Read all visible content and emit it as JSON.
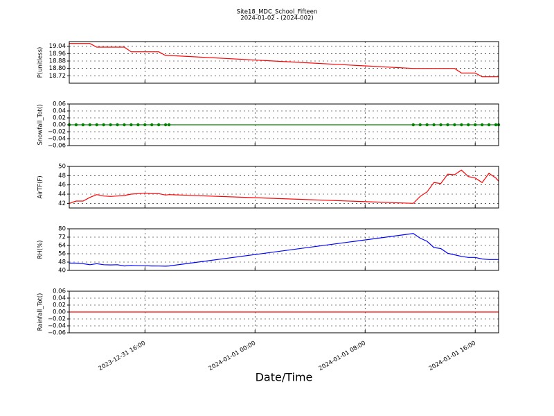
{
  "chart_data": [
    {
      "type": "line",
      "title": "Site18_MDC_School_Fifteen",
      "subtitle": "2024-01-02 - (2024-002)",
      "ylabel": "P(unitless)",
      "x": [
        "2023-12-31 10:30",
        "2023-12-31 11:00",
        "2023-12-31 11:30",
        "2023-12-31 12:00",
        "2023-12-31 12:30",
        "2023-12-31 13:00",
        "2023-12-31 13:30",
        "2023-12-31 14:00",
        "2023-12-31 14:30",
        "2023-12-31 15:00",
        "2023-12-31 15:30",
        "2023-12-31 16:00",
        "2023-12-31 16:30",
        "2023-12-31 17:00",
        "2023-12-31 17:30",
        "2023-12-31 17:45",
        "2024-01-01 11:30",
        "2024-01-01 12:00",
        "2024-01-01 12:30",
        "2024-01-01 13:00",
        "2024-01-01 13:30",
        "2024-01-01 14:00",
        "2024-01-01 14:30",
        "2024-01-01 15:00",
        "2024-01-01 15:30",
        "2024-01-01 16:00",
        "2024-01-01 16:30",
        "2024-01-01 17:00",
        "2024-01-01 17:30",
        "2024-01-01 17:42"
      ],
      "values": [
        19.07,
        19.07,
        19.07,
        19.07,
        19.03,
        19.03,
        19.03,
        19.03,
        19.03,
        18.98,
        18.98,
        18.98,
        18.98,
        18.98,
        18.94,
        18.94,
        18.8,
        18.8,
        18.8,
        18.8,
        18.8,
        18.8,
        18.8,
        18.75,
        18.75,
        18.75,
        18.71,
        18.71,
        18.71,
        18.71
      ],
      "color": "#ff0000",
      "marker": false,
      "xlim": [
        "2023-12-31 10:30",
        "2024-01-01 17:42"
      ],
      "xticks": [
        "2023-12-31 16:00",
        "2024-01-01 00:00",
        "2024-01-01 08:00",
        "2024-01-01 16:00"
      ],
      "ylim": [
        18.64,
        19.09
      ],
      "yticks": [
        {
          "value": 18.72,
          "label": "18.72"
        },
        {
          "value": 18.8,
          "label": "18.80"
        },
        {
          "value": 18.88,
          "label": "18.88"
        },
        {
          "value": 18.96,
          "label": "18.96"
        },
        {
          "value": 19.04,
          "label": "19.04"
        }
      ],
      "grid": true
    },
    {
      "type": "line",
      "ylabel": "Snowfall_Tot()",
      "x": [
        "2023-12-31 10:30",
        "2023-12-31 11:00",
        "2023-12-31 11:30",
        "2023-12-31 12:00",
        "2023-12-31 12:30",
        "2023-12-31 13:00",
        "2023-12-31 13:30",
        "2023-12-31 14:00",
        "2023-12-31 14:30",
        "2023-12-31 15:00",
        "2023-12-31 15:30",
        "2023-12-31 16:00",
        "2023-12-31 16:30",
        "2023-12-31 17:00",
        "2023-12-31 17:30",
        "2023-12-31 17:45",
        "2024-01-01 11:30",
        "2024-01-01 12:00",
        "2024-01-01 12:30",
        "2024-01-01 13:00",
        "2024-01-01 13:30",
        "2024-01-01 14:00",
        "2024-01-01 14:30",
        "2024-01-01 15:00",
        "2024-01-01 15:30",
        "2024-01-01 16:00",
        "2024-01-01 16:30",
        "2024-01-01 17:00",
        "2024-01-01 17:30",
        "2024-01-01 17:42"
      ],
      "values": [
        0,
        0,
        0,
        0,
        0,
        0,
        0,
        0,
        0,
        0,
        0,
        0,
        0,
        0,
        0,
        0,
        0,
        0,
        0,
        0,
        0,
        0,
        0,
        0,
        0,
        0,
        0,
        0,
        0,
        0
      ],
      "color": "#008000",
      "marker": true,
      "xlim": [
        "2023-12-31 10:30",
        "2024-01-01 17:42"
      ],
      "xticks": [
        "2023-12-31 16:00",
        "2024-01-01 00:00",
        "2024-01-01 08:00",
        "2024-01-01 16:00"
      ],
      "ylim": [
        -0.06,
        0.06
      ],
      "yticks": [
        {
          "value": -0.06,
          "label": "−0.06"
        },
        {
          "value": -0.04,
          "label": "−0.04"
        },
        {
          "value": -0.02,
          "label": "−0.02"
        },
        {
          "value": 0,
          "label": "0.00"
        },
        0.02,
        0.04,
        0.06
      ],
      "grid": true
    },
    {
      "type": "line",
      "ylabel": "AirTF(F)",
      "x": [
        "2023-12-31 10:30",
        "2023-12-31 11:00",
        "2023-12-31 11:30",
        "2023-12-31 12:00",
        "2023-12-31 12:30",
        "2023-12-31 13:00",
        "2023-12-31 13:30",
        "2023-12-31 14:00",
        "2023-12-31 14:30",
        "2023-12-31 15:00",
        "2023-12-31 15:30",
        "2023-12-31 16:00",
        "2023-12-31 16:30",
        "2023-12-31 17:00",
        "2023-12-31 17:30",
        "2023-12-31 17:45",
        "2024-01-01 11:30",
        "2024-01-01 12:00",
        "2024-01-01 12:30",
        "2024-01-01 13:00",
        "2024-01-01 13:30",
        "2024-01-01 14:00",
        "2024-01-01 14:30",
        "2024-01-01 15:00",
        "2024-01-01 15:30",
        "2024-01-01 16:00",
        "2024-01-01 16:30",
        "2024-01-01 17:00",
        "2024-01-01 17:30",
        "2024-01-01 17:42"
      ],
      "values": [
        42,
        42.5,
        42.5,
        43.3,
        43.9,
        43.6,
        43.5,
        43.6,
        43.7,
        44,
        44.1,
        44.2,
        44.1,
        44.1,
        43.8,
        43.9,
        42,
        43.5,
        44.5,
        46.5,
        46.3,
        48.3,
        48.2,
        49.2,
        47.8,
        47.5,
        46.5,
        48.5,
        47.5,
        46.8
      ],
      "color": "#ff0000",
      "marker": false,
      "xlim": [
        "2023-12-31 10:30",
        "2024-01-01 17:42"
      ],
      "xticks": [
        "2023-12-31 16:00",
        "2024-01-01 00:00",
        "2024-01-01 08:00",
        "2024-01-01 16:00"
      ],
      "ylim": [
        41,
        50
      ],
      "yticks": [
        42,
        44,
        46,
        48,
        50
      ],
      "grid": true
    },
    {
      "type": "line",
      "ylabel": "RH(%)",
      "x": [
        "2023-12-31 10:30",
        "2023-12-31 11:00",
        "2023-12-31 11:30",
        "2023-12-31 12:00",
        "2023-12-31 12:30",
        "2023-12-31 13:00",
        "2023-12-31 13:30",
        "2023-12-31 14:00",
        "2023-12-31 14:30",
        "2023-12-31 15:00",
        "2023-12-31 15:30",
        "2023-12-31 16:00",
        "2023-12-31 16:30",
        "2023-12-31 17:00",
        "2023-12-31 17:30",
        "2023-12-31 17:45",
        "2024-01-01 11:30",
        "2024-01-01 12:00",
        "2024-01-01 12:30",
        "2024-01-01 13:00",
        "2024-01-01 13:30",
        "2024-01-01 14:00",
        "2024-01-01 14:30",
        "2024-01-01 15:00",
        "2024-01-01 15:30",
        "2024-01-01 16:00",
        "2024-01-01 16:30",
        "2024-01-01 17:00",
        "2024-01-01 17:30",
        "2024-01-01 17:42"
      ],
      "values": [
        47,
        47,
        46.5,
        45.5,
        46.5,
        45.5,
        45.3,
        45.5,
        44.3,
        44.8,
        44.5,
        44.5,
        44.3,
        44.2,
        44.1,
        44.3,
        75.5,
        71,
        68,
        62,
        61,
        56.5,
        55,
        53.5,
        52.5,
        52.5,
        51,
        50.5,
        50.5,
        50.5
      ],
      "color": "#0000ff",
      "marker": false,
      "xlim": [
        "2023-12-31 10:30",
        "2024-01-01 17:42"
      ],
      "xticks": [
        "2023-12-31 16:00",
        "2024-01-01 00:00",
        "2024-01-01 08:00",
        "2024-01-01 16:00"
      ],
      "ylim": [
        40,
        80
      ],
      "yticks": [
        40,
        48,
        56,
        64,
        72,
        80
      ],
      "grid": true
    },
    {
      "type": "line",
      "ylabel": "Rainfall_Tot()",
      "xlabel": "Date/Time",
      "x": [
        "2023-12-31 10:30",
        "2023-12-31 11:00",
        "2023-12-31 11:30",
        "2023-12-31 12:00",
        "2023-12-31 12:30",
        "2023-12-31 13:00",
        "2023-12-31 13:30",
        "2023-12-31 14:00",
        "2023-12-31 14:30",
        "2023-12-31 15:00",
        "2023-12-31 15:30",
        "2023-12-31 16:00",
        "2023-12-31 16:30",
        "2023-12-31 17:00",
        "2023-12-31 17:30",
        "2023-12-31 17:45",
        "2024-01-01 11:30",
        "2024-01-01 12:00",
        "2024-01-01 12:30",
        "2024-01-01 13:00",
        "2024-01-01 13:30",
        "2024-01-01 14:00",
        "2024-01-01 14:30",
        "2024-01-01 15:00",
        "2024-01-01 15:30",
        "2024-01-01 16:00",
        "2024-01-01 16:30",
        "2024-01-01 17:00",
        "2024-01-01 17:30",
        "2024-01-01 17:42"
      ],
      "values": [
        0,
        0,
        0,
        0,
        0,
        0,
        0,
        0,
        0,
        0,
        0,
        0,
        0,
        0,
        0,
        0,
        0,
        0,
        0,
        0,
        0,
        0,
        0,
        0,
        0,
        0,
        0,
        0,
        0,
        0
      ],
      "color": "#ff0000",
      "marker": false,
      "xlim": [
        "2023-12-31 10:30",
        "2024-01-01 17:42"
      ],
      "xticks": [
        "2023-12-31 16:00",
        "2024-01-01 00:00",
        "2024-01-01 08:00",
        "2024-01-01 16:00"
      ],
      "ylim": [
        -0.06,
        0.06
      ],
      "yticks": [
        {
          "value": -0.06,
          "label": "−0.06"
        },
        {
          "value": -0.04,
          "label": "−0.04"
        },
        {
          "value": -0.02,
          "label": "−0.02"
        },
        {
          "value": 0,
          "label": "0.00"
        },
        0.02,
        0.04,
        0.06
      ],
      "grid": true
    }
  ]
}
